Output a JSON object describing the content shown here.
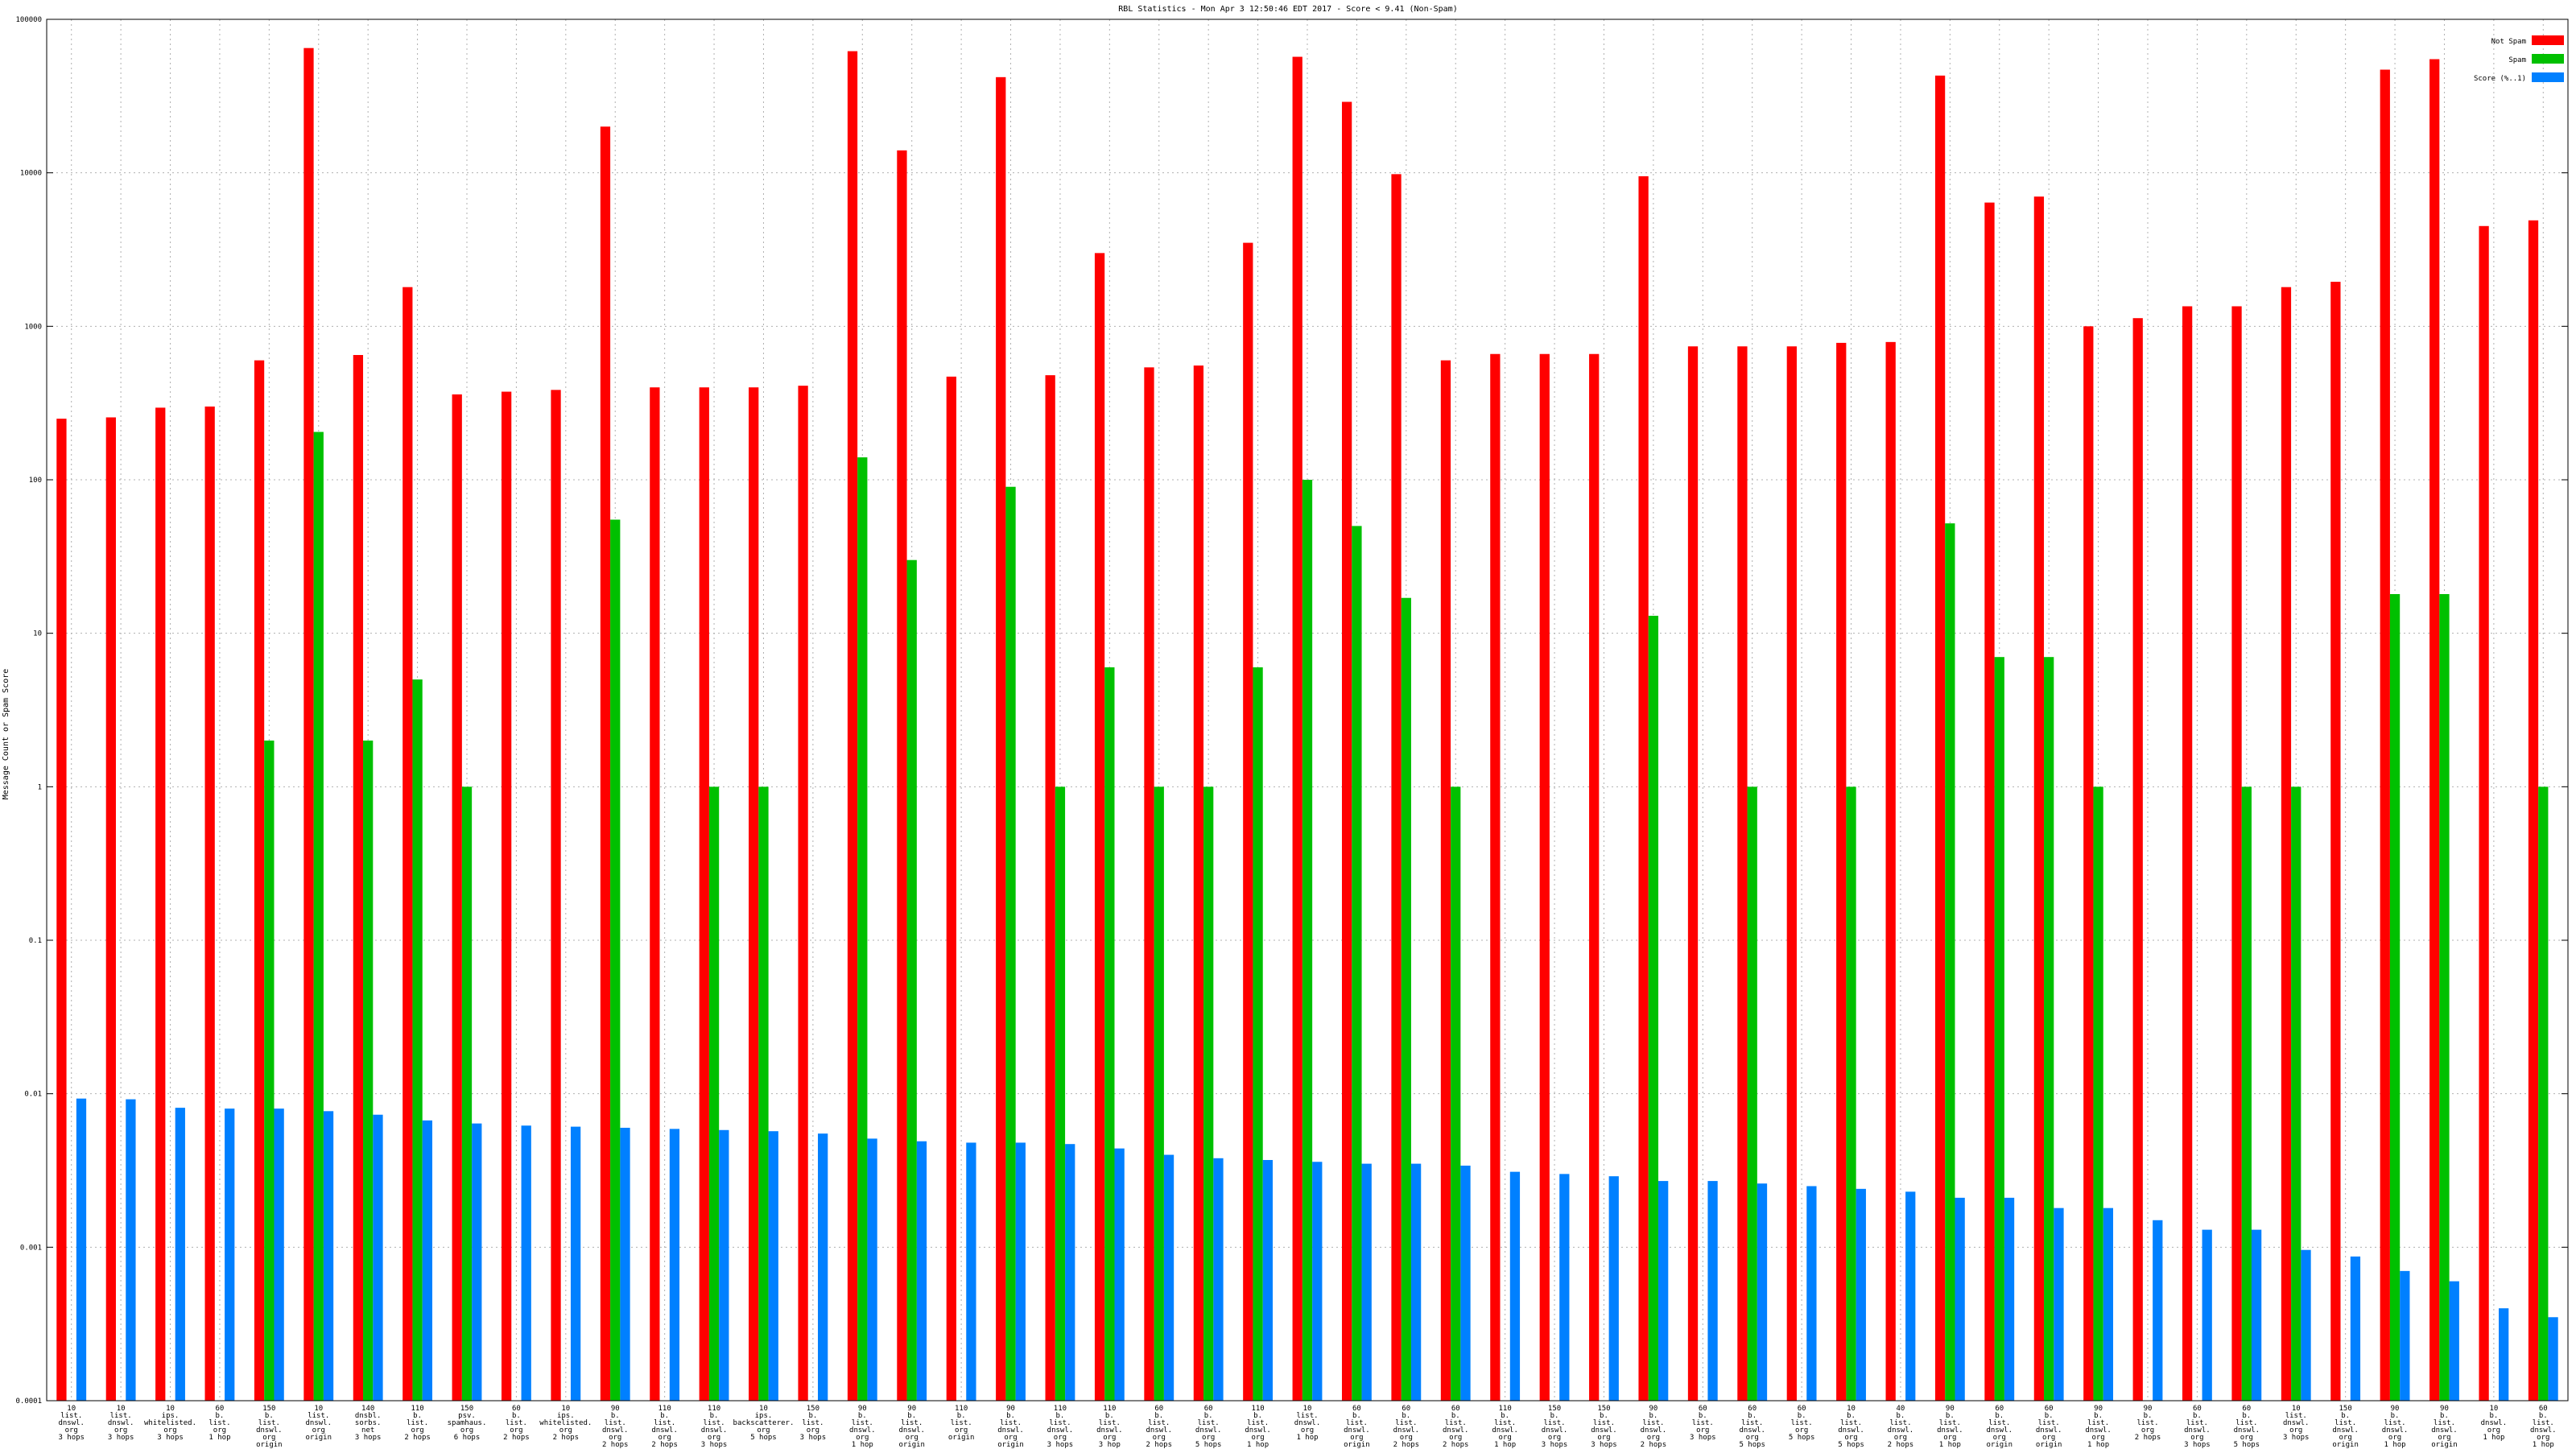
{
  "chart_data": {
    "type": "bar",
    "title": "RBL Statistics - Mon Apr  3 12:50:46 EDT 2017 - Score < 9.41 (Non-Spam)",
    "ylabel": "Message Count or Spam Score",
    "xlabel": "",
    "yscale": "log",
    "ylim": [
      0.0001,
      100000
    ],
    "yticks": [
      {
        "value": 0.0001,
        "label": "0.0001"
      },
      {
        "value": 0.001,
        "label": "0.001"
      },
      {
        "value": 0.01,
        "label": "0.01"
      },
      {
        "value": 0.1,
        "label": "0.1"
      },
      {
        "value": 1,
        "label": "1"
      },
      {
        "value": 10,
        "label": "10"
      },
      {
        "value": 100,
        "label": "100"
      },
      {
        "value": 1000,
        "label": "1000"
      },
      {
        "value": 10000,
        "label": "10000"
      },
      {
        "value": 100000,
        "label": "100000"
      }
    ],
    "grid": true,
    "legend_position": "top-right",
    "categories": [
      [
        "10",
        "list.",
        "dnswl.",
        "org",
        "3 hops"
      ],
      [
        "10",
        "list.",
        "dnswl.",
        "org",
        "3 hops"
      ],
      [
        "10",
        "ips.",
        "whitelisted.",
        "org",
        "3 hops"
      ],
      [
        "60",
        "b.",
        "list.",
        "org",
        "1 hop"
      ],
      [
        "150",
        "b.",
        "list.",
        "dnswl.",
        "org",
        "origin"
      ],
      [
        "10",
        "list.",
        "dnswl.",
        "org",
        "origin"
      ],
      [
        "140",
        "dnsbl.",
        "sorbs.",
        "net",
        "3 hops"
      ],
      [
        "110",
        "b.",
        "list.",
        "org",
        "2 hops"
      ],
      [
        "150",
        "psv.",
        "spamhaus.",
        "org",
        "6 hops"
      ],
      [
        "60",
        "b.",
        "list.",
        "org",
        "2 hops"
      ],
      [
        "10",
        "ips.",
        "whitelisted.",
        "org",
        "2 hops"
      ],
      [
        "90",
        "b.",
        "list.",
        "dnswl.",
        "org",
        "2 hops"
      ],
      [
        "110",
        "b.",
        "list.",
        "dnswl.",
        "org",
        "2 hops"
      ],
      [
        "110",
        "b.",
        "list.",
        "dnswl.",
        "org",
        "3 hops"
      ],
      [
        "10",
        "ips.",
        "backscatterer.",
        "org",
        "5 hops"
      ],
      [
        "150",
        "b.",
        "list.",
        "org",
        "3 hops"
      ],
      [
        "90",
        "b.",
        "list.",
        "dnswl.",
        "org",
        "1 hop"
      ],
      [
        "90",
        "b.",
        "list.",
        "dnswl.",
        "org",
        "origin"
      ],
      [
        "110",
        "b.",
        "list.",
        "org",
        "origin"
      ],
      [
        "90",
        "b.",
        "list.",
        "dnswl.",
        "org",
        "origin"
      ],
      [
        "110",
        "b.",
        "list.",
        "dnswl.",
        "org",
        "3 hops"
      ],
      [
        "110",
        "b.",
        "list.",
        "dnswl.",
        "org",
        "3 hop"
      ],
      [
        "60",
        "b.",
        "list.",
        "dnswl.",
        "org",
        "2 hops"
      ],
      [
        "60",
        "b.",
        "list.",
        "dnswl.",
        "org",
        "5 hops"
      ],
      [
        "110",
        "b.",
        "list.",
        "dnswl.",
        "org",
        "1 hop"
      ],
      [
        "10",
        "list.",
        "dnswl.",
        "org",
        "1 hop"
      ],
      [
        "60",
        "b.",
        "list.",
        "dnswl.",
        "org",
        "origin"
      ],
      [
        "60",
        "b.",
        "list.",
        "dnswl.",
        "org",
        "2 hops"
      ],
      [
        "60",
        "b.",
        "list.",
        "dnswl.",
        "org",
        "2 hops"
      ],
      [
        "110",
        "b.",
        "list.",
        "dnswl.",
        "org",
        "1 hop"
      ],
      [
        "150",
        "b.",
        "list.",
        "dnswl.",
        "org",
        "3 hops"
      ],
      [
        "150",
        "b.",
        "list.",
        "dnswl.",
        "org",
        "3 hops"
      ],
      [
        "90",
        "b.",
        "list.",
        "dnswl.",
        "org",
        "2 hops"
      ],
      [
        "60",
        "b.",
        "list.",
        "org",
        "3 hops"
      ],
      [
        "60",
        "b.",
        "list.",
        "dnswl.",
        "org",
        "5 hops"
      ],
      [
        "60",
        "b.",
        "list.",
        "org",
        "5 hops"
      ],
      [
        "10",
        "b.",
        "list.",
        "dnswl.",
        "org",
        "5 hops"
      ],
      [
        "40",
        "b.",
        "list.",
        "dnswl.",
        "org",
        "2 hops"
      ],
      [
        "90",
        "b.",
        "list.",
        "dnswl.",
        "org",
        "1 hop"
      ],
      [
        "60",
        "b.",
        "list.",
        "dnswl.",
        "org",
        "origin"
      ],
      [
        "60",
        "b.",
        "list.",
        "dnswl.",
        "org",
        "origin"
      ],
      [
        "90",
        "b.",
        "list.",
        "dnswl.",
        "org",
        "1 hop"
      ],
      [
        "90",
        "b.",
        "list.",
        "org",
        "2 hops"
      ],
      [
        "60",
        "b.",
        "list.",
        "dnswl.",
        "org",
        "3 hops"
      ],
      [
        "60",
        "b.",
        "list.",
        "dnswl.",
        "org",
        "5 hops"
      ],
      [
        "10",
        "list.",
        "dnswl.",
        "org",
        "3 hops"
      ],
      [
        "150",
        "b.",
        "list.",
        "dnswl.",
        "org",
        "origin"
      ],
      [
        "90",
        "b.",
        "list.",
        "dnswl.",
        "org",
        "1 hop"
      ],
      [
        "90",
        "b.",
        "list.",
        "dnswl.",
        "org",
        "origin"
      ],
      [
        "10",
        "b.",
        "dnswl.",
        "org",
        "1 hop"
      ],
      [
        "60",
        "b.",
        "list.",
        "dnswl.",
        "org",
        "1 hop"
      ]
    ],
    "series": [
      {
        "name": "Not Spam",
        "color": "#ff0000",
        "values": [
          250,
          255,
          295,
          300,
          600,
          65000,
          650,
          1800,
          360,
          375,
          385,
          20000,
          400,
          400,
          400,
          410,
          62000,
          14000,
          470,
          42000,
          480,
          3000,
          540,
          555,
          3500,
          57000,
          29000,
          9800,
          600,
          660,
          660,
          660,
          9500,
          740,
          740,
          740,
          780,
          790,
          43000,
          6400,
          7000,
          1000,
          1130,
          1350,
          1350,
          1800,
          1950,
          47000,
          55000,
          4500,
          4900
        ]
      },
      {
        "name": "Spam",
        "color": "#00c000",
        "values": [
          null,
          null,
          null,
          null,
          2,
          205,
          2,
          5,
          1,
          null,
          null,
          55,
          null,
          1,
          1,
          null,
          140,
          30,
          null,
          90,
          1,
          6,
          1,
          1,
          6,
          100,
          50,
          17,
          1,
          null,
          null,
          null,
          13,
          null,
          1,
          null,
          1,
          null,
          52,
          7,
          7,
          1,
          null,
          null,
          1,
          1,
          null,
          18,
          18,
          null,
          1
        ]
      },
      {
        "name": "Score (%..1)",
        "color": "#0080ff",
        "values": [
          0.0093,
          0.0092,
          0.0081,
          0.008,
          0.008,
          0.0077,
          0.0073,
          0.0067,
          0.0064,
          0.0062,
          0.0061,
          0.006,
          0.0059,
          0.0058,
          0.0057,
          0.0055,
          0.0051,
          0.0049,
          0.0048,
          0.0048,
          0.0047,
          0.0044,
          0.004,
          0.0038,
          0.0037,
          0.0036,
          0.0035,
          0.0035,
          0.0034,
          0.0031,
          0.003,
          0.0029,
          0.0027,
          0.0027,
          0.0026,
          0.0025,
          0.0024,
          0.0023,
          0.0021,
          0.0021,
          0.0018,
          0.0018,
          0.0015,
          0.0013,
          0.0013,
          0.00096,
          0.00087,
          0.0007,
          0.0006,
          0.0004,
          0.00035
        ]
      }
    ]
  }
}
